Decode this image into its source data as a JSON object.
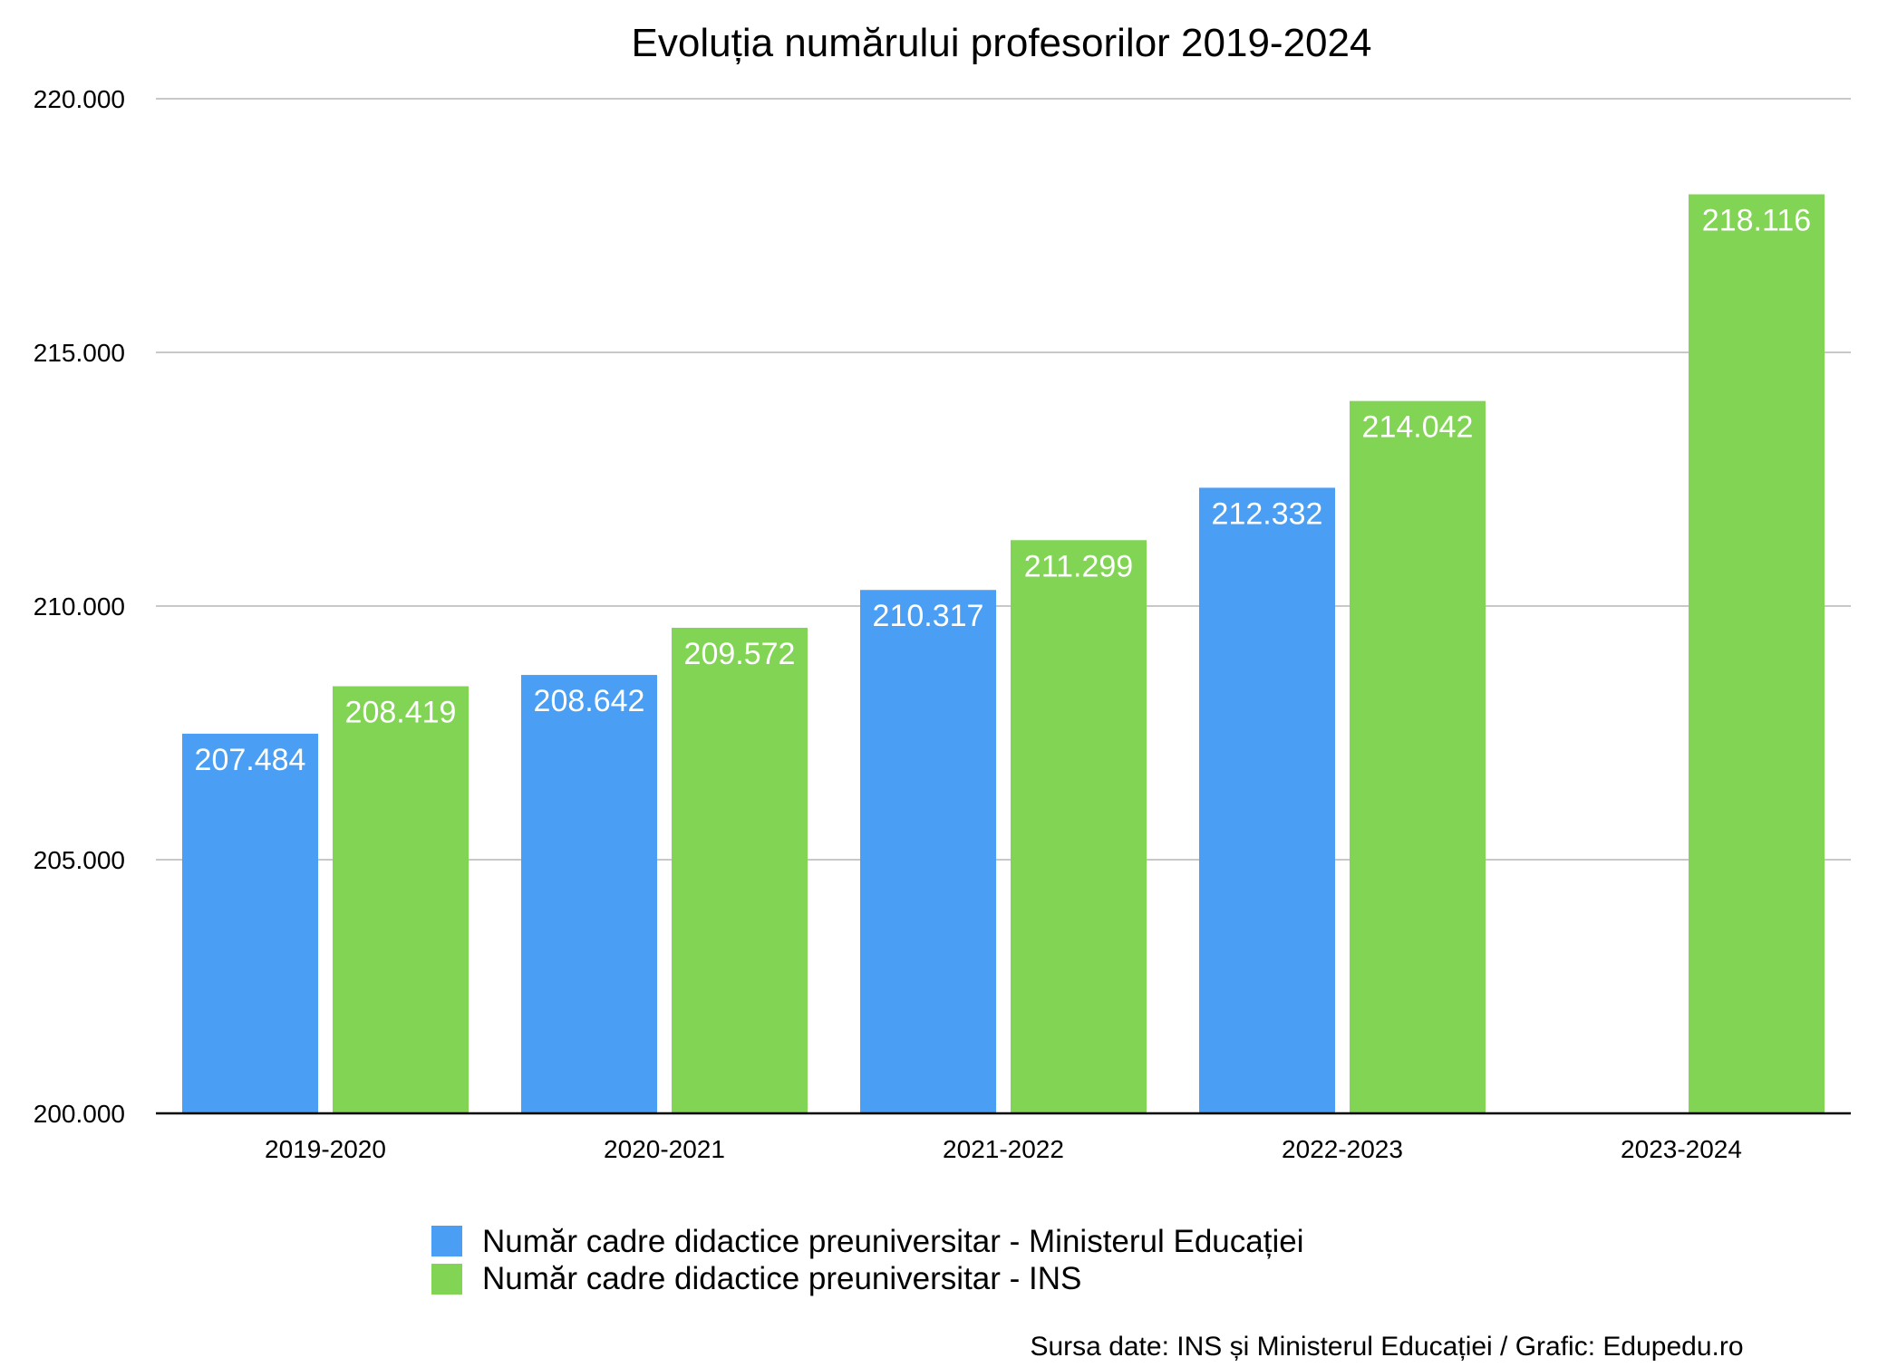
{
  "chart_data": {
    "type": "bar",
    "title": "Evoluția numărului profesorilor 2019-2024",
    "categories": [
      "2019-2020",
      "2020-2021",
      "2021-2022",
      "2022-2023",
      "2023-2024"
    ],
    "series": [
      {
        "name": "Număr cadre didactice preuniversitar - Ministerul Educației",
        "color": "#4A9FF5",
        "values": [
          207484,
          208642,
          210317,
          212332,
          null
        ],
        "labels": [
          "207.484",
          "208.642",
          "210.317",
          "212.332",
          ""
        ]
      },
      {
        "name": "Număr cadre didactice preuniversitar - INS",
        "color": "#82D454",
        "values": [
          208419,
          209572,
          211299,
          214042,
          218116
        ],
        "labels": [
          "208.419",
          "209.572",
          "211.299",
          "214.042",
          "218.116"
        ]
      }
    ],
    "yticks": [
      200000,
      205000,
      210000,
      215000,
      220000
    ],
    "ytick_labels": [
      "200.000",
      "205.000",
      "210.000",
      "215.000",
      "220.000"
    ],
    "ylim": [
      200000,
      220000
    ],
    "grid": true,
    "legend_position": "bottom",
    "xlabel": "",
    "ylabel": ""
  },
  "source_note": "Sursa date: INS și Ministerul Educației / Grafic: Edupedu.ro"
}
